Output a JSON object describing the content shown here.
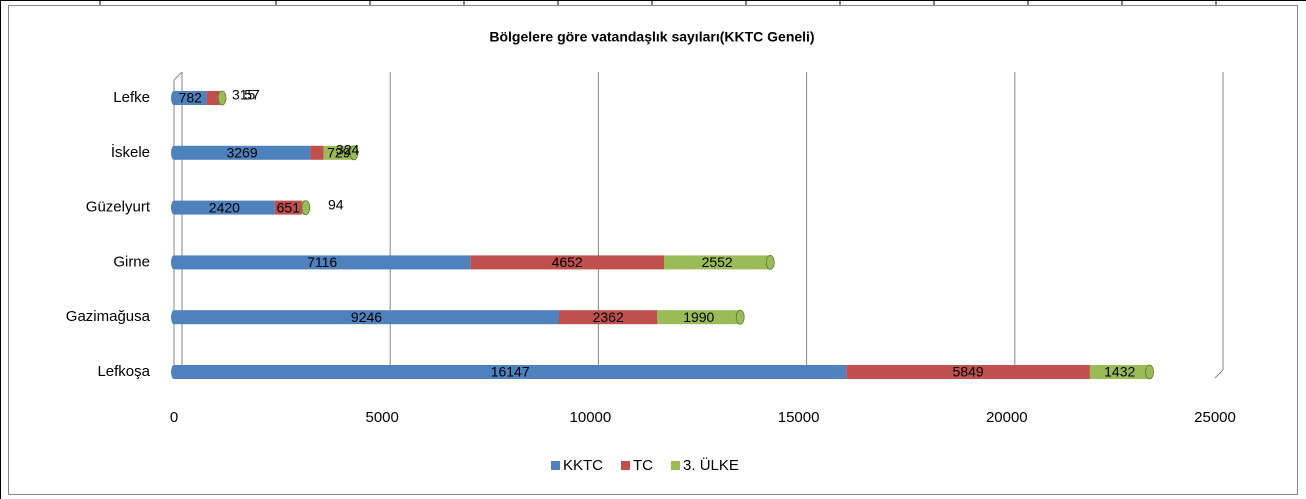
{
  "chart_data": {
    "type": "bar",
    "orientation": "horizontal",
    "stacked": true,
    "title": "Bölgelere göre vatandaşlık sayıları(KKTC Geneli)",
    "categories": [
      "Lefke",
      "İskele",
      "Güzelyurt",
      "Girne",
      "Gazimağusa",
      "Lefkoşa"
    ],
    "series": [
      {
        "name": "KKTC",
        "color": "#4f81bd",
        "values": [
          782,
          3269,
          2420,
          7116,
          9246,
          16147
        ]
      },
      {
        "name": "TC",
        "color": "#c0504d",
        "values": [
          315,
          324,
          651,
          4652,
          2362,
          5849
        ]
      },
      {
        "name": "3. ÜLKE",
        "color": "#9bbb59",
        "values": [
          57,
          729,
          94,
          2552,
          1990,
          1432
        ]
      }
    ],
    "xlim": [
      0,
      25000
    ],
    "xticks": [
      0,
      5000,
      10000,
      15000,
      20000,
      25000
    ],
    "grid": true,
    "legend": "bottom"
  }
}
